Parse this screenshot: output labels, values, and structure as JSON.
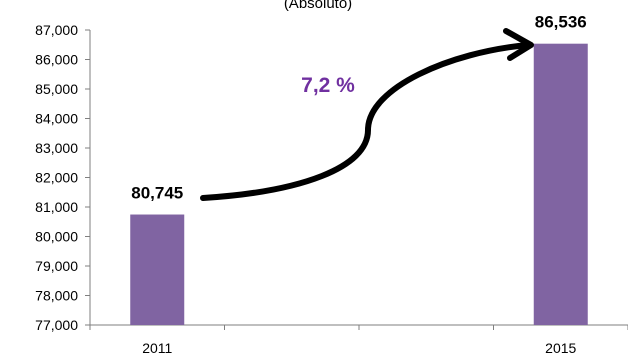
{
  "chart_data": {
    "type": "bar",
    "title": "(Absoluto)",
    "categories": [
      "2011",
      "2015"
    ],
    "values": [
      80745,
      86536
    ],
    "value_labels": [
      "80,745",
      "86,536"
    ],
    "ylim": [
      77000,
      87000
    ],
    "y_ticks": [
      "77,000",
      "78,000",
      "79,000",
      "80,000",
      "81,000",
      "82,000",
      "83,000",
      "84,000",
      "85,000",
      "86,000",
      "87,000"
    ],
    "grid": false,
    "bar_color": "#8064A2",
    "annotation": {
      "text": "7,2 %",
      "color": "#7030A0",
      "arrow": "from 2011 bar to 2015 bar"
    }
  }
}
